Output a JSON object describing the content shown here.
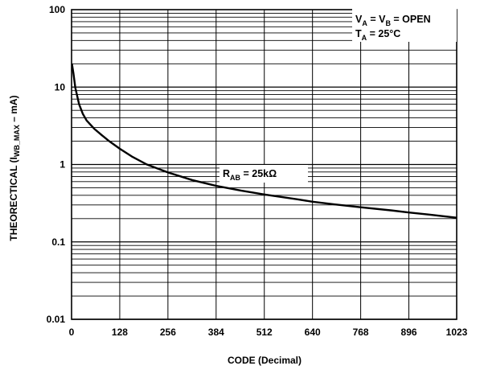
{
  "chart_data": {
    "type": "line",
    "xlabel": "CODE (Decimal)",
    "ylabel": {
      "main": "THEORECTICAL (I",
      "sub": "WB_MAX",
      "tail": " – mA)"
    },
    "x_scale": "linear",
    "y_scale": "log",
    "xlim": [
      0,
      1023
    ],
    "ylim": [
      0.01,
      100
    ],
    "x_ticks": [
      0,
      128,
      256,
      384,
      512,
      640,
      768,
      896,
      1023
    ],
    "y_ticks": [
      0.01,
      0.1,
      1,
      10,
      100
    ],
    "y_tick_labels": [
      "0.01",
      "0.1",
      "1",
      "10",
      "100"
    ],
    "grid": true,
    "series": [
      {
        "name": "R_AB = 25kΩ",
        "x": [
          1,
          5,
          10,
          20,
          30,
          40,
          60,
          80,
          100,
          128,
          160,
          200,
          256,
          320,
          384,
          450,
          512,
          600,
          640,
          700,
          768,
          850,
          896,
          950,
          1023
        ],
        "y": [
          20,
          15,
          9.8,
          6.0,
          4.5,
          3.7,
          2.9,
          2.4,
          2.0,
          1.6,
          1.27,
          1.0,
          0.79,
          0.63,
          0.53,
          0.46,
          0.41,
          0.355,
          0.33,
          0.305,
          0.28,
          0.255,
          0.24,
          0.225,
          0.205
        ]
      }
    ],
    "annotations": {
      "conditions": [
        {
          "main": "V",
          "sub": "A",
          "mid": " = V",
          "sub2": "B",
          "tail": " = OPEN"
        },
        {
          "main": "T",
          "sub": "A",
          "tail": " = 25°C"
        }
      ],
      "curve_label": {
        "main": "R",
        "sub": "AB",
        "tail": " = 25kΩ"
      }
    }
  }
}
